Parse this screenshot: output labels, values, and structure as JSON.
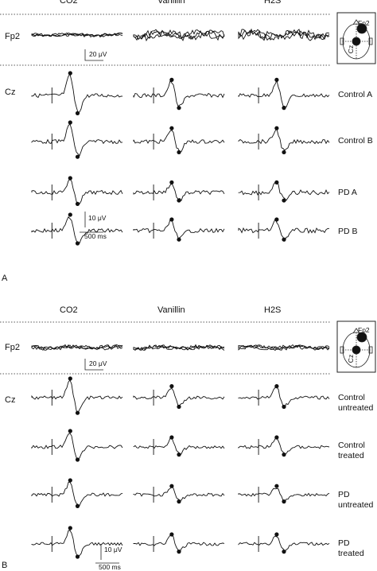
{
  "panelA": {
    "letter": "A",
    "columns": [
      "CO2",
      "Vanillin",
      "H2S"
    ],
    "channels": {
      "fp2": "Fp2",
      "cz": "Cz"
    },
    "rows": [
      "Control A",
      "Control B",
      "PD A",
      "PD B"
    ],
    "fp2_scale": "20 μV",
    "cz_scale_v": "10 μV",
    "cz_scale_t": "500 ms",
    "inset": {
      "top": "Fp2",
      "mid": "Cz"
    }
  },
  "panelB": {
    "letter": "B",
    "columns": [
      "CO2",
      "Vanillin",
      "H2S"
    ],
    "channels": {
      "fp2": "Fp2",
      "cz": "Cz"
    },
    "rows": [
      "Control\nuntreated",
      "Control\ntreated",
      "PD\nuntreated",
      "PD\ntreated"
    ],
    "fp2_scale": "20 μV",
    "cz_scale_v": "10 μV",
    "cz_scale_t": "500 ms",
    "inset": {
      "top": "Fp2",
      "mid": "Cz"
    }
  }
}
